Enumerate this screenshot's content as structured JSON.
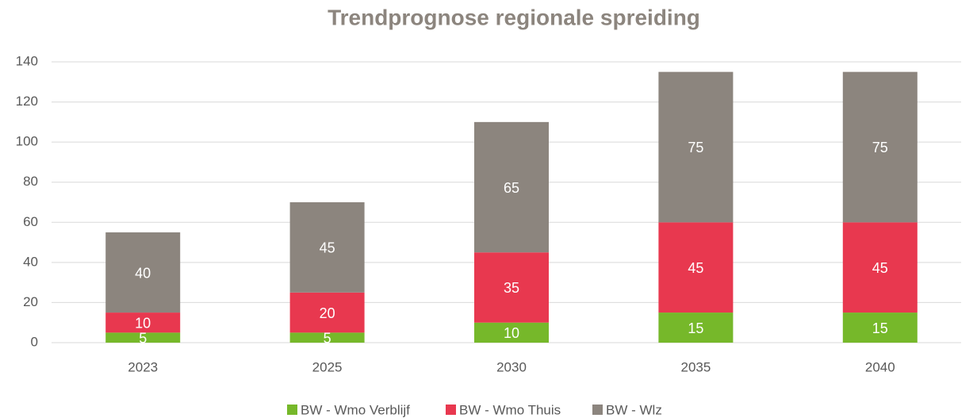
{
  "chart_data": {
    "type": "stacked_bar",
    "title": "Trendprognose regionale spreiding",
    "categories": [
      "2023",
      "2025",
      "2030",
      "2035",
      "2040"
    ],
    "series": [
      {
        "name": "BW - Wmo Verblijf",
        "color": "#76b82a",
        "values": [
          5,
          5,
          10,
          15,
          15
        ]
      },
      {
        "name": "BW - Wmo Thuis",
        "color": "#e8384f",
        "values": [
          10,
          20,
          35,
          45,
          45
        ]
      },
      {
        "name": "BW - Wlz",
        "color": "#8c857e",
        "values": [
          40,
          45,
          65,
          75,
          75
        ]
      }
    ],
    "ylim": [
      0,
      140
    ],
    "yticks": [
      0,
      20,
      40,
      60,
      80,
      100,
      120,
      140
    ],
    "grid": true,
    "legend": "bottom"
  }
}
